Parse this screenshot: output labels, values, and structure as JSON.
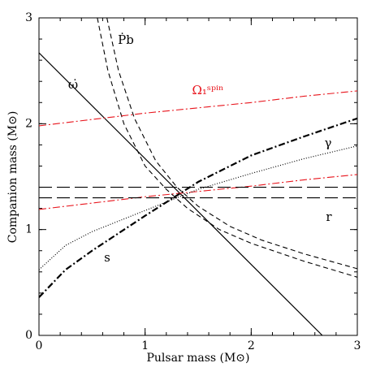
{
  "chart_data": {
    "type": "line",
    "x_label": "Pulsar mass (M⊙)",
    "y_label": "Companion mass (M⊙)",
    "xlim": [
      0,
      3
    ],
    "ylim": [
      0,
      3
    ],
    "xticks": [
      0,
      1,
      2,
      3
    ],
    "yticks": [
      0,
      1,
      2,
      3
    ],
    "series": [
      {
        "name": "ω̇",
        "color": "#000000",
        "style": "solid",
        "x": [
          0,
          2.67
        ],
        "values": [
          2.67,
          0
        ]
      },
      {
        "name": "Ṗb",
        "color": "#000000",
        "style": "dashed",
        "x": [
          0.55,
          0.65,
          0.8,
          1.0,
          1.2,
          1.4,
          1.7,
          2.0,
          2.5,
          3.0
        ],
        "values": [
          3,
          2.5,
          2.0,
          1.6,
          1.38,
          1.2,
          1.0,
          0.87,
          0.7,
          0.55
        ]
      },
      {
        "color": "#000000",
        "style": "dashed",
        "x": [
          0.64,
          0.75,
          0.9,
          1.1,
          1.3,
          1.5,
          1.8,
          2.1,
          2.5,
          3.0
        ],
        "values": [
          3,
          2.5,
          2.05,
          1.65,
          1.4,
          1.22,
          1.03,
          0.9,
          0.77,
          0.63
        ]
      },
      {
        "name": "Ω₁ˢᵖⁱⁿ",
        "color": "#e8141c",
        "style": "dashdot",
        "x": [
          0,
          0.5,
          1,
          1.5,
          2,
          2.5,
          3
        ],
        "values": [
          1.98,
          2.04,
          2.1,
          2.15,
          2.2,
          2.26,
          2.31
        ]
      },
      {
        "color": "#e8141c",
        "style": "dashdot",
        "x": [
          0,
          0.5,
          1,
          1.5,
          2,
          2.5,
          3
        ],
        "values": [
          1.19,
          1.25,
          1.31,
          1.36,
          1.41,
          1.47,
          1.52
        ]
      },
      {
        "name": "γ",
        "color": "#000000",
        "style": "dotted",
        "x": [
          0,
          0.25,
          0.5,
          1,
          1.5,
          2,
          2.5,
          3
        ],
        "values": [
          0.62,
          0.85,
          0.98,
          1.18,
          1.38,
          1.53,
          1.67,
          1.79
        ]
      },
      {
        "name": "r",
        "color": "#000000",
        "style": "longdash",
        "x": [
          0,
          3
        ],
        "values": [
          1.4,
          1.4
        ]
      },
      {
        "color": "#000000",
        "style": "longdash",
        "x": [
          0,
          3
        ],
        "values": [
          1.3,
          1.3
        ]
      },
      {
        "name": "s",
        "color": "#000000",
        "style": "thickdashdot",
        "x": [
          0,
          0.25,
          0.5,
          1,
          1.5,
          2,
          2.5,
          3
        ],
        "values": [
          0.36,
          0.62,
          0.8,
          1.13,
          1.45,
          1.7,
          1.88,
          2.05
        ]
      }
    ]
  }
}
